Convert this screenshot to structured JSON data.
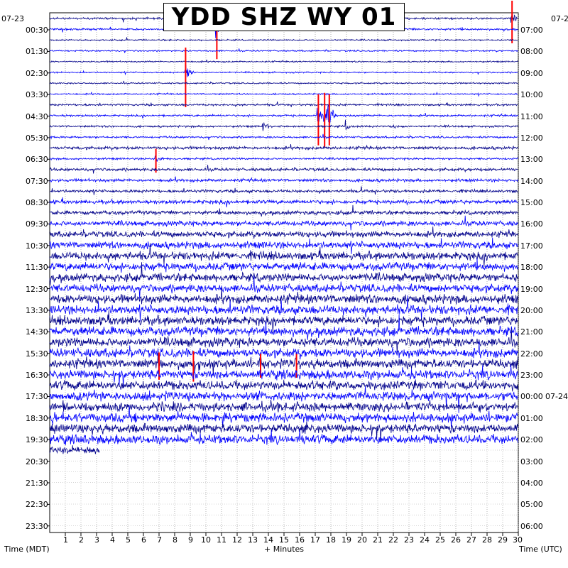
{
  "chart_data": {
    "type": "helicorder",
    "title": "YDD SHZ WY 01",
    "date_left": "07-23",
    "date_right_top": "07-2",
    "date_right_wrap": "07-24",
    "xlabel_left": "Time (MDT)",
    "xlabel_center": "+ Minutes",
    "xlabel_right": "Time (UTC)",
    "minutes_per_line": 30,
    "x_ticks": [
      1,
      2,
      3,
      4,
      5,
      6,
      7,
      8,
      9,
      10,
      11,
      12,
      13,
      14,
      15,
      16,
      17,
      18,
      19,
      20,
      21,
      22,
      23,
      24,
      25,
      26,
      27,
      28,
      29,
      30
    ],
    "left_labels": [
      "00:30",
      "01:30",
      "02:30",
      "03:30",
      "04:30",
      "05:30",
      "06:30",
      "07:30",
      "08:30",
      "09:30",
      "10:30",
      "11:30",
      "12:30",
      "13:30",
      "14:30",
      "15:30",
      "16:30",
      "17:30",
      "18:30",
      "19:30",
      "20:30",
      "21:30",
      "22:30",
      "23:30"
    ],
    "right_labels": [
      "07:00",
      "08:00",
      "09:00",
      "10:00",
      "11:00",
      "12:00",
      "13:00",
      "14:00",
      "15:00",
      "16:00",
      "17:00",
      "18:00",
      "19:00",
      "20:00",
      "21:00",
      "22:00",
      "23:00",
      "00:00",
      "01:00",
      "02:00",
      "03:00",
      "04:00",
      "05:00",
      "06:00"
    ],
    "trace_colors": [
      "#00008b",
      "#0000ff"
    ],
    "clip_color": "#ff0000",
    "grid": true,
    "trace_count": 41,
    "row_amplitudes": [
      2,
      2,
      1.5,
      1.5,
      1.5,
      1.5,
      1.5,
      1.5,
      2,
      2,
      2,
      2,
      3,
      2,
      3,
      3,
      3,
      4,
      4,
      5,
      6,
      7,
      8,
      8,
      8,
      8,
      9,
      9,
      9,
      9,
      9,
      9,
      9,
      9,
      9,
      9,
      9,
      9,
      9,
      9,
      8
    ],
    "events": [
      {
        "row": 0,
        "minute": 29.6,
        "amp": 25,
        "clip": true
      },
      {
        "row": 1,
        "minute": 10.7,
        "amp": 30,
        "clip": true
      },
      {
        "row": 5,
        "minute": 8.7,
        "amp": 35,
        "clip": true
      },
      {
        "row": 9,
        "minute": 17.2,
        "amp": 30,
        "clip": true
      },
      {
        "row": 9,
        "minute": 17.6,
        "amp": 32,
        "clip": true
      },
      {
        "row": 9,
        "minute": 17.9,
        "amp": 30,
        "clip": true
      },
      {
        "row": 10,
        "minute": 13.7,
        "amp": 15,
        "clip": false
      },
      {
        "row": 10,
        "minute": 19.0,
        "amp": 12,
        "clip": false
      },
      {
        "row": 10,
        "minute": 22.0,
        "amp": 8,
        "clip": false
      },
      {
        "row": 13,
        "minute": 6.8,
        "amp": 14,
        "clip": true
      },
      {
        "row": 32,
        "minute": 7.0,
        "amp": 16,
        "clip": true
      },
      {
        "row": 32,
        "minute": 9.2,
        "amp": 18,
        "clip": true
      },
      {
        "row": 32,
        "minute": 13.5,
        "amp": 14,
        "clip": true
      },
      {
        "row": 32,
        "minute": 15.8,
        "amp": 14,
        "clip": true
      }
    ]
  }
}
